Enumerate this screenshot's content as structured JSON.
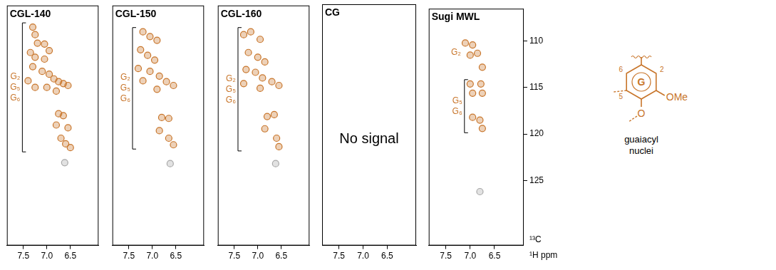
{
  "chart_data": [
    {
      "type": "scatter",
      "title": "CGL-140",
      "xlim": [
        7.85,
        5.9
      ],
      "xticks": [
        7.5,
        {
          "value": 7,
          "label": "7.0"
        },
        6.5
      ],
      "ylim": [
        132,
        106.5
      ],
      "tick_labels": "x",
      "grid": false,
      "series": [
        {
          "color": "#c8752a",
          "annotation": [
            "G₂",
            "G₅",
            "G₆"
          ],
          "x": [
            7.3,
            7.25,
            7.2,
            7.05,
            7.35,
            7.25,
            7.05,
            6.95,
            7.3,
            7.1,
            6.95,
            6.85,
            6.75,
            6.65,
            6.55,
            7.0,
            6.8,
            7.4,
            7.25,
            6.75,
            6.65,
            6.8,
            6.55,
            6.7,
            6.6,
            6.5
          ],
          "values": [
            108.8,
            109.6,
            110.5,
            110.6,
            111.5,
            112.0,
            112.2,
            111.3,
            113.0,
            113.5,
            113.8,
            114.3,
            114.6,
            114.8,
            115.0,
            115.2,
            115.6,
            114.5,
            115.2,
            118.0,
            118.2,
            119.2,
            119.5,
            120.6,
            121.2,
            121.6
          ]
        },
        {
          "color": "#a8a8a8",
          "x": [
            6.62
          ],
          "values": [
            123.2
          ]
        }
      ]
    },
    {
      "type": "scatter",
      "title": "CGL-150",
      "xlim": [
        7.85,
        5.9
      ],
      "xticks": [
        7.5,
        {
          "value": 7,
          "label": "7.0"
        },
        6.5
      ],
      "ylim": [
        132,
        106.5
      ],
      "tick_labels": "x",
      "grid": false,
      "series": [
        {
          "color": "#c8752a",
          "annotation": [
            "G₂",
            "G₅",
            "G₆"
          ],
          "x": [
            7.2,
            7.05,
            6.9,
            7.25,
            7.1,
            6.95,
            7.3,
            7.05,
            6.85,
            6.7,
            6.55,
            6.9,
            7.2,
            6.8,
            6.65,
            6.85,
            6.65,
            6.55
          ],
          "values": [
            109.3,
            109.8,
            110.2,
            111.2,
            111.8,
            112.3,
            113.2,
            113.5,
            114.0,
            114.6,
            115.0,
            115.4,
            114.5,
            118.4,
            118.5,
            119.8,
            120.6,
            121.3
          ]
        },
        {
          "color": "#a8a8a8",
          "x": [
            6.62
          ],
          "values": [
            123.3
          ]
        }
      ]
    },
    {
      "type": "scatter",
      "title": "CGL-160",
      "xlim": [
        7.85,
        5.9
      ],
      "xticks": [
        7.5,
        {
          "value": 7,
          "label": "7.0"
        },
        6.5
      ],
      "ylim": [
        132,
        106.5
      ],
      "tick_labels": "x",
      "grid": false,
      "series": [
        {
          "color": "#c8752a",
          "annotation": [
            "G₂",
            "G₅",
            "G₆"
          ],
          "x": [
            7.3,
            7.15,
            6.95,
            7.2,
            7.0,
            6.85,
            7.25,
            7.05,
            6.9,
            6.7,
            6.55,
            6.95,
            7.3,
            6.8,
            6.65,
            6.85,
            6.6,
            6.55
          ],
          "values": [
            109.6,
            109.3,
            110.1,
            111.5,
            112.0,
            112.5,
            113.3,
            113.6,
            114.2,
            114.6,
            115.0,
            115.3,
            114.8,
            118.3,
            118.1,
            119.6,
            120.6,
            121.5
          ]
        },
        {
          "color": "#a8a8a8",
          "x": [
            6.62
          ],
          "values": [
            123.3
          ]
        }
      ]
    },
    {
      "type": "scatter",
      "title": "CG",
      "annotation": "No signal",
      "xlim": [
        7.85,
        5.9
      ],
      "xticks": [
        7.5,
        {
          "value": 7,
          "label": "7.0"
        },
        6.5
      ],
      "ylim": [
        132,
        106.5
      ],
      "tick_labels": "x",
      "grid": false,
      "series": []
    },
    {
      "type": "scatter",
      "title": "Sugi MWL",
      "xlim": [
        7.85,
        5.9
      ],
      "xticks": [
        7.5,
        {
          "value": 7,
          "label": "7.0"
        },
        6.5
      ],
      "ylim": [
        132,
        106.5
      ],
      "yticks": [
        110,
        115,
        120,
        125
      ],
      "x_label": "¹H ppm",
      "y_label": "¹³C",
      "grid": false,
      "series": [
        {
          "color": "#c8752a",
          "annotation": [
            "G₂"
          ],
          "x": [
            7.1,
            6.95,
            6.85,
            7.0,
            6.75
          ],
          "values": [
            110.2,
            110.4,
            111.3,
            111.5,
            112.8
          ]
        },
        {
          "color": "#c8752a",
          "annotation": [
            "G₅",
            "G₆"
          ],
          "x": [
            7.0,
            6.95,
            6.78,
            6.75,
            6.95,
            6.8,
            6.75
          ],
          "values": [
            114.6,
            115.6,
            114.6,
            115.6,
            118.2,
            118.5,
            119.4
          ]
        },
        {
          "color": "#a8a8a8",
          "x": [
            6.8
          ],
          "values": [
            126.2
          ]
        }
      ]
    }
  ],
  "structure": {
    "ring": "G",
    "positions": [
      "6",
      "5",
      "2"
    ],
    "substituents": [
      "OMe",
      "O"
    ],
    "caption": "guaiacyl nuclei",
    "color": "#c8752a"
  }
}
